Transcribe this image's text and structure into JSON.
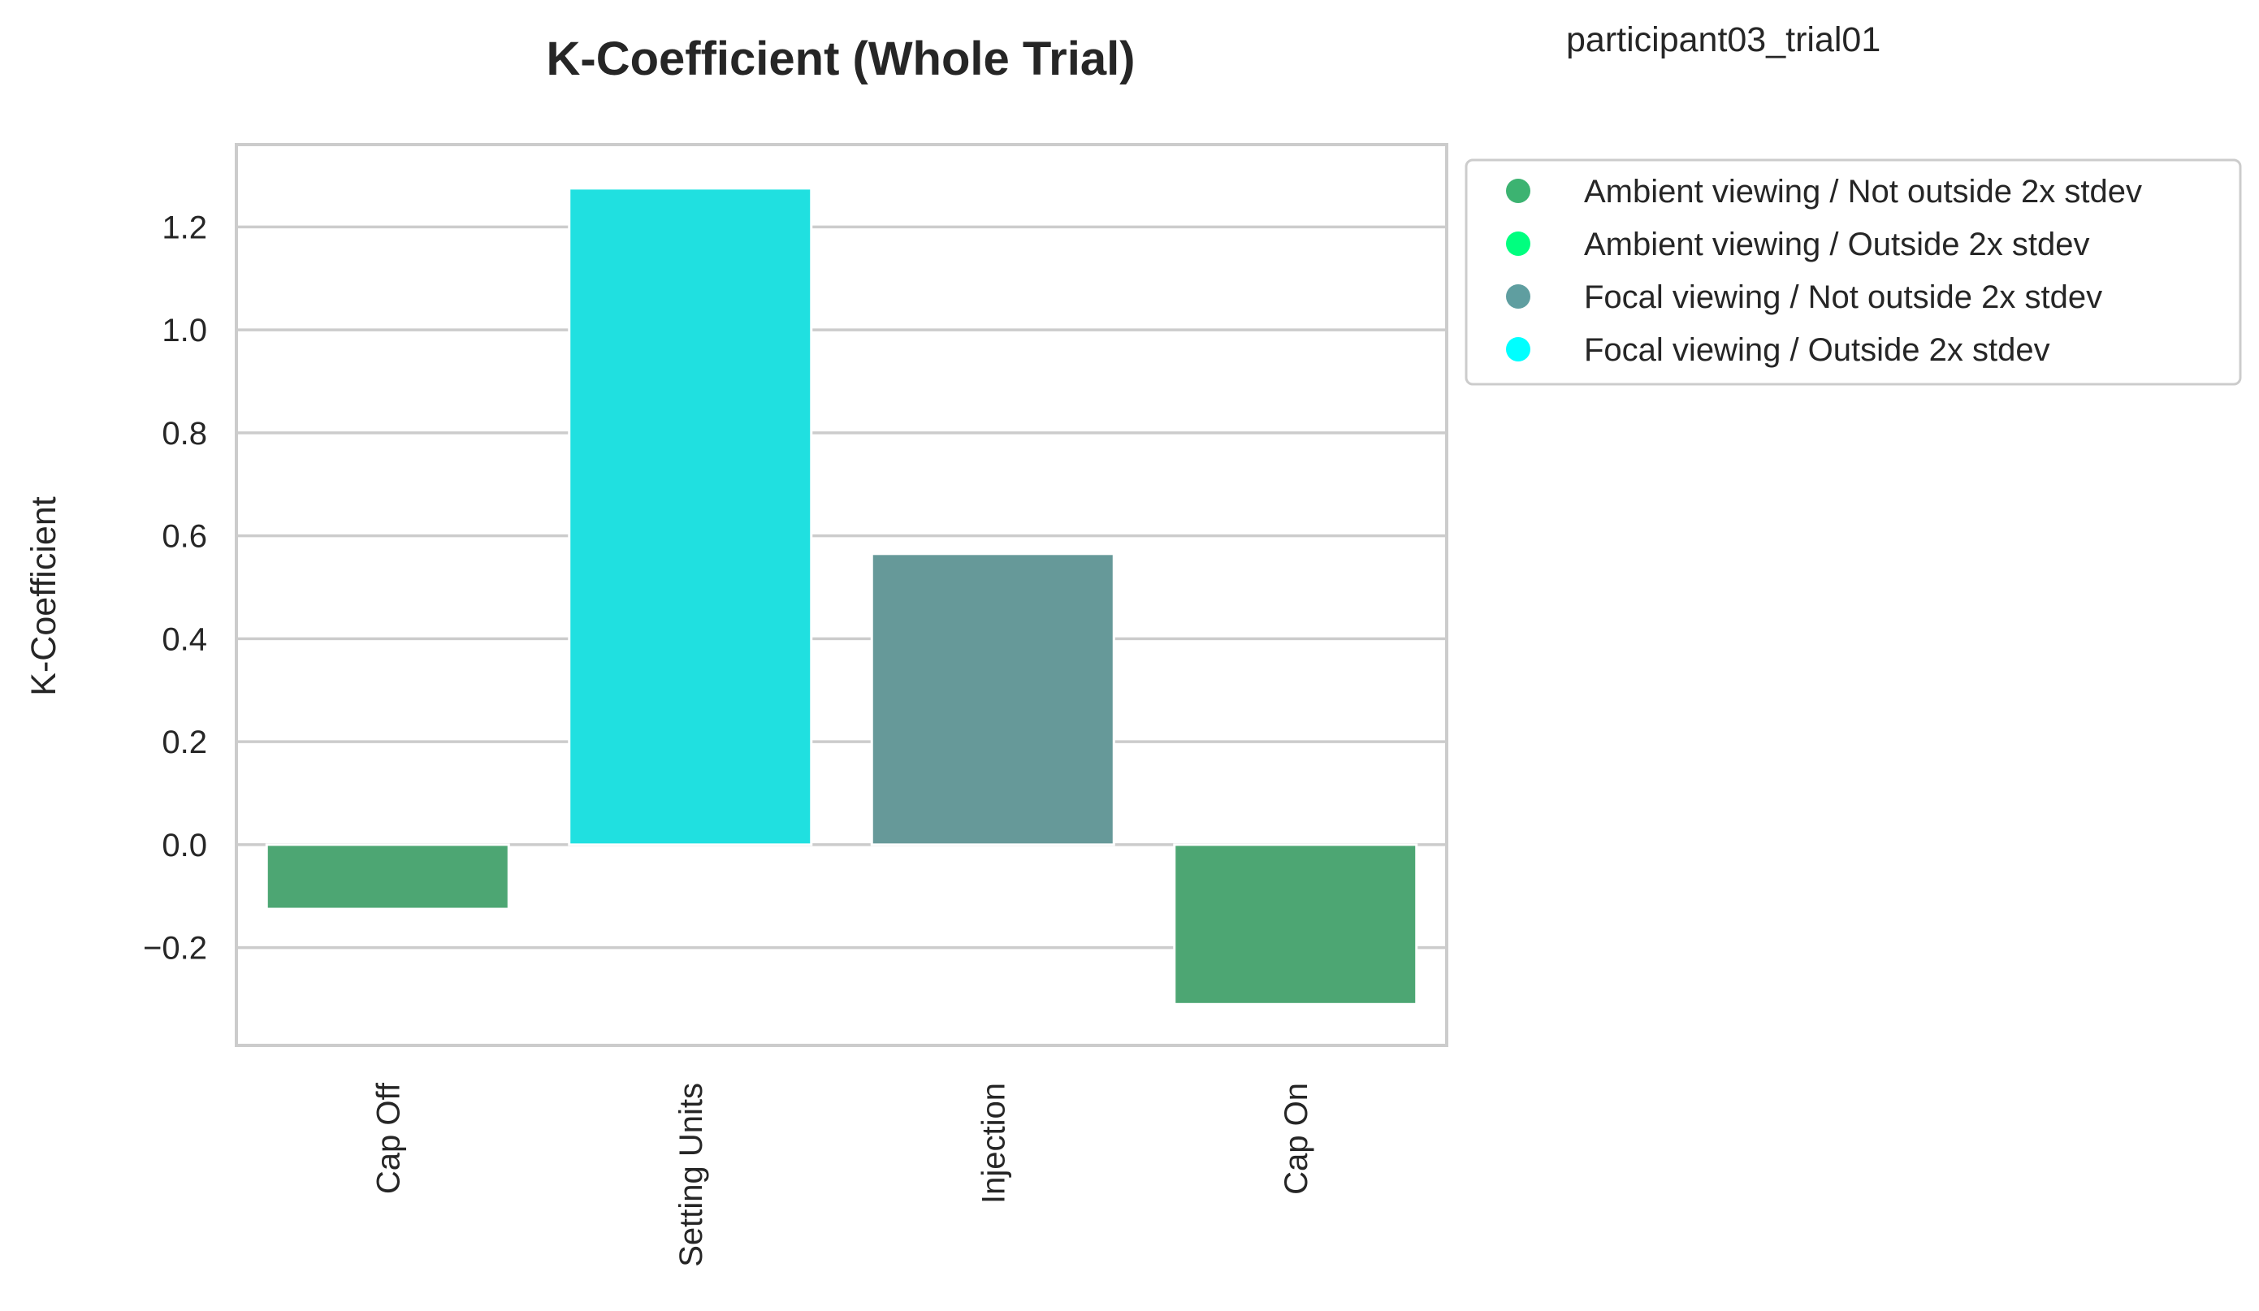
{
  "corner_label": "participant03_trial01",
  "chart_data": {
    "type": "bar",
    "title": "K-Coefficient (Whole Trial)",
    "xlabel": "",
    "ylabel": "K-Coefficient",
    "categories": [
      "Cap Off",
      "Setting Units",
      "Injection",
      "Cap On"
    ],
    "values": [
      -0.125,
      1.275,
      0.565,
      -0.31
    ],
    "bar_series": [
      "Ambient viewing / Not outside 2x stdev",
      "Focal viewing / Outside 2x stdev",
      "Focal viewing / Not outside 2x stdev",
      "Ambient viewing / Not outside 2x stdev"
    ],
    "ylim": [
      -0.39,
      1.36
    ],
    "yticks": [
      -0.2,
      0.0,
      0.2,
      0.4,
      0.6,
      0.8,
      1.0,
      1.2
    ],
    "ytick_labels": [
      "−0.2",
      "0.0",
      "0.2",
      "0.4",
      "0.6",
      "0.8",
      "1.0",
      "1.2"
    ],
    "grid": "horizontal",
    "legend_position": "outside top-right",
    "legend": [
      {
        "name": "Ambient viewing / Not outside 2x stdev",
        "color": "#3cb371"
      },
      {
        "name": "Ambient viewing / Outside 2x stdev",
        "color": "#00ff7f"
      },
      {
        "name": "Focal viewing / Not outside 2x stdev",
        "color": "#5f9ea0"
      },
      {
        "name": "Focal viewing / Outside 2x stdev",
        "color": "#00ffff"
      }
    ],
    "bar_colors": [
      "#4da673",
      "#20e0e0",
      "#669999",
      "#4da673"
    ]
  }
}
